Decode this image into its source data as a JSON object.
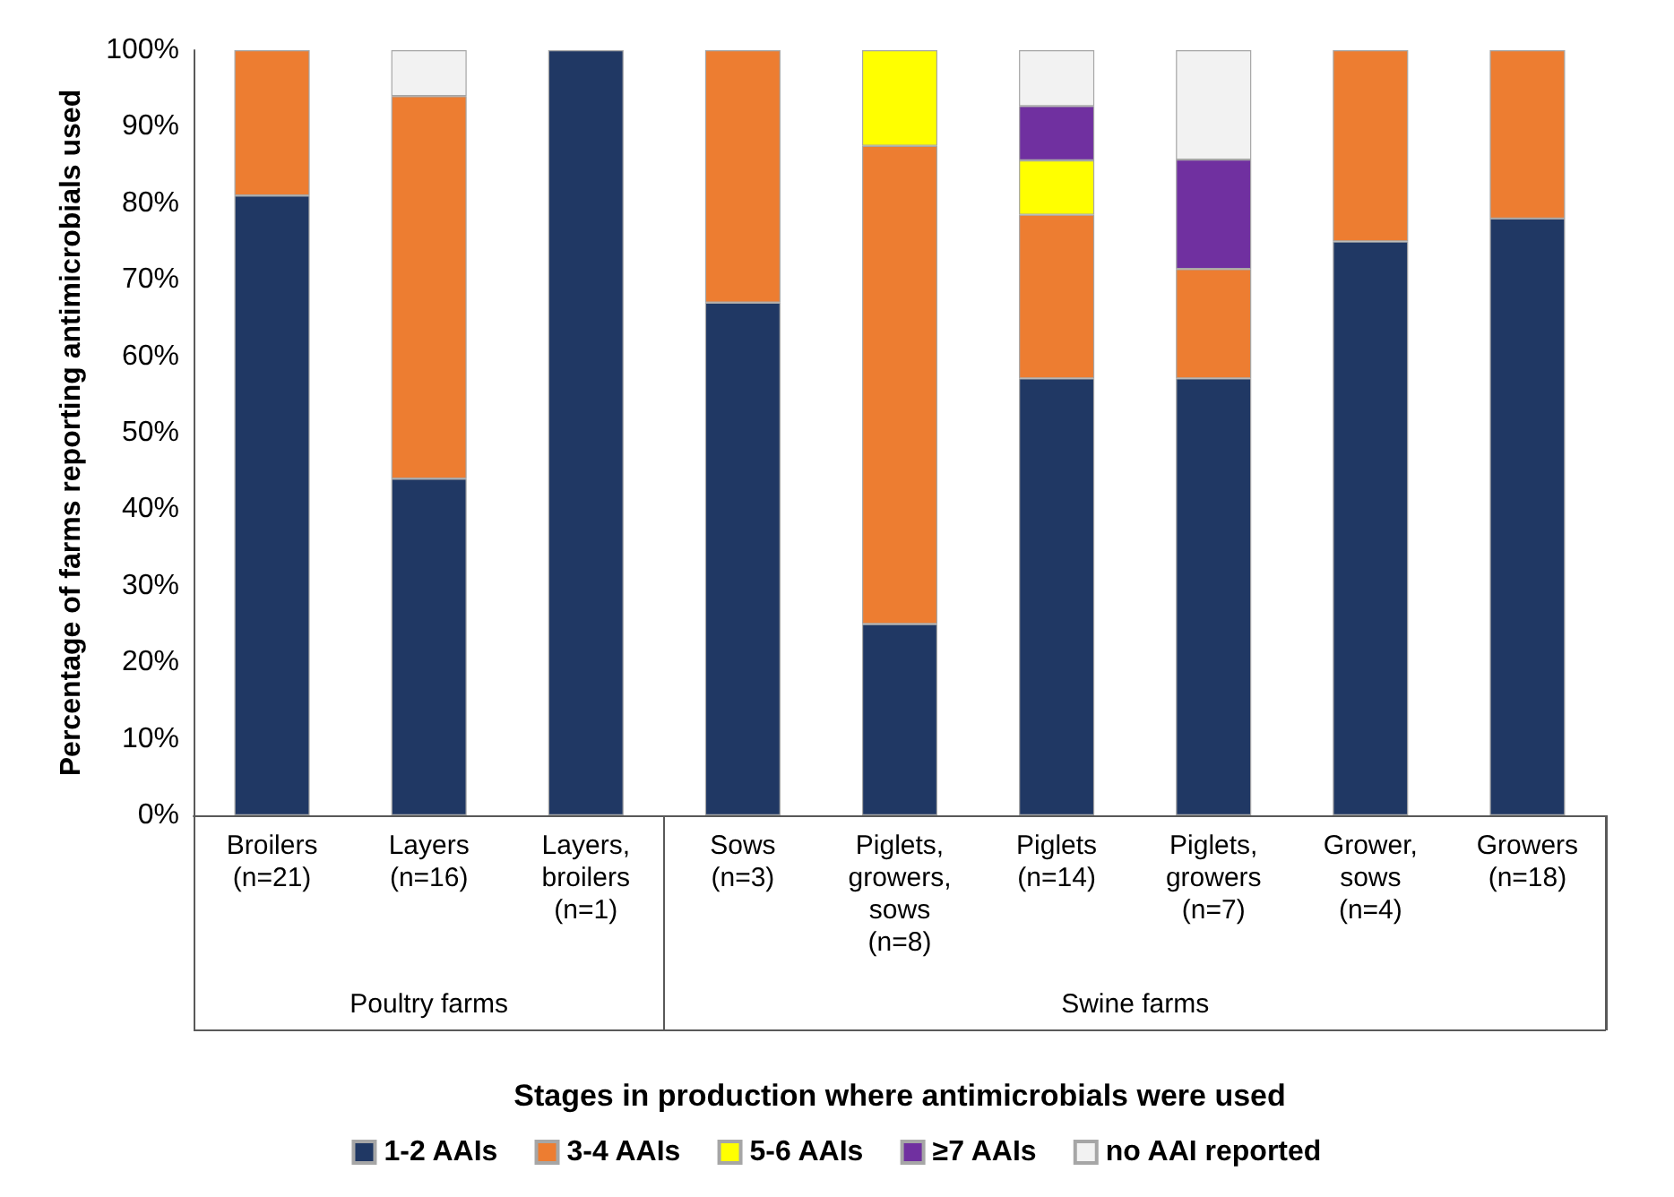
{
  "chart_data": {
    "type": "bar",
    "stacked": true,
    "xlabel": "Stages in production where antimicrobials were used",
    "ylabel": "Percentage of farms reporting antimicrobials used",
    "categories": [
      "Broilers\n(n=21)",
      "Layers\n(n=16)",
      "Layers,\nbroilers\n(n=1)",
      "Sows\n(n=3)",
      "Piglets,\ngrowers,\nsows\n(n=8)",
      "Piglets\n(n=14)",
      "Piglets,\ngrowers\n(n=7)",
      "Grower,\nsows\n(n=4)",
      "Growers\n(n=18)"
    ],
    "series": [
      {
        "name": "1-2 AAIs",
        "color": "#203864",
        "values": [
          81,
          44,
          100,
          67,
          25,
          57.1,
          57.1,
          75,
          78
        ]
      },
      {
        "name": "3-4 AAIs",
        "color": "#ed7d31",
        "values": [
          19,
          50,
          0,
          33,
          62.5,
          21.4,
          14.3,
          25,
          22
        ]
      },
      {
        "name": "5-6 AAIs",
        "color": "#ffff00",
        "values": [
          0,
          0,
          0,
          0,
          12.5,
          7.1,
          0,
          0,
          0
        ]
      },
      {
        "name": "≥7 AAIs",
        "color": "#7030a0",
        "values": [
          0,
          0,
          0,
          0,
          0,
          7.1,
          14.3,
          0,
          0
        ]
      },
      {
        "name": "no AAI reported",
        "color": "#f2f2f2",
        "values": [
          0,
          6,
          0,
          0,
          0,
          7.3,
          14.3,
          0,
          0
        ]
      }
    ],
    "ylim": [
      0,
      100
    ],
    "yticks": [
      {
        "value": 0,
        "label": "0%"
      },
      {
        "value": 10,
        "label": "10%"
      },
      {
        "value": 20,
        "label": "20%"
      },
      {
        "value": 30,
        "label": "30%"
      },
      {
        "value": 40,
        "label": "40%"
      },
      {
        "value": 50,
        "label": "50%"
      },
      {
        "value": 60,
        "label": "60%"
      },
      {
        "value": 70,
        "label": "70%"
      },
      {
        "value": 80,
        "label": "80%"
      },
      {
        "value": 90,
        "label": "90%"
      },
      {
        "value": 100,
        "label": "100%"
      }
    ],
    "annotations": [
      "Poultry farms",
      "Swine farms"
    ],
    "grid": false,
    "legend": "bottom"
  }
}
